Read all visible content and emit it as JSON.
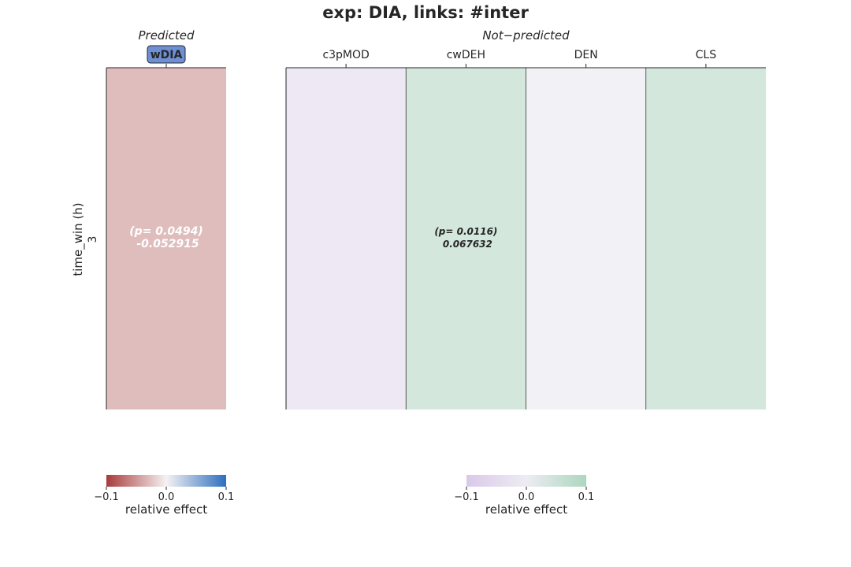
{
  "chart_data": {
    "type": "heatmap",
    "title": "exp: DIA, links: #inter",
    "ylabel": "time_win (h)",
    "rows": [
      "3"
    ],
    "panels": [
      {
        "heading": "Predicted",
        "columns": [
          "wDIA"
        ],
        "highlight_column": "wDIA",
        "highlight_color": "#6f8fd4",
        "values": [
          [
            -0.052915
          ]
        ],
        "annotations": [
          {
            "column": "wDIA",
            "p_text": "(p= 0.0494)",
            "value_text": "-0.052915",
            "text_color": "#ffffff"
          }
        ],
        "colormap": {
          "low": "#a83a3a",
          "mid": "#f5f2f2",
          "high": "#2c6ebf"
        },
        "colorbar": {
          "label": "relative effect",
          "ticks": [
            "−0.1",
            "0.0",
            "0.1"
          ],
          "range": [
            -0.1,
            0.1
          ]
        }
      },
      {
        "heading": "Not−predicted",
        "columns": [
          "c3pMOD",
          "cwDEH",
          "DEN",
          "CLS"
        ],
        "values": [
          [
            -0.04,
            0.067632,
            0.0,
            0.067632
          ]
        ],
        "annotations": [
          {
            "column": "cwDEH",
            "p_text": "(p= 0.0116)",
            "value_text": "0.067632",
            "text_color": "#262626"
          }
        ],
        "colormap": {
          "low": "#d3bfe6",
          "mid": "#eae9f0",
          "high": "#9ecfb4"
        },
        "colorbar": {
          "label": "relative effect",
          "ticks": [
            "−0.1",
            "0.0",
            "0.1"
          ],
          "range": [
            -0.1,
            0.1
          ]
        }
      }
    ]
  }
}
